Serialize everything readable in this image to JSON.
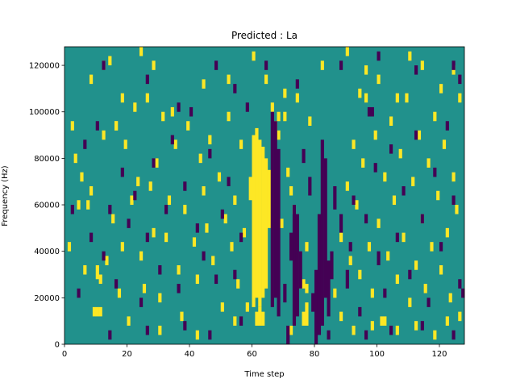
{
  "chart_data": {
    "type": "heatmap",
    "title": "Predicted : La",
    "xlabel": "Time step",
    "ylabel": "Frequency (Hz)",
    "xlim": [
      0,
      128
    ],
    "ylim": [
      0,
      128000
    ],
    "x_ticks": [
      0,
      20,
      40,
      60,
      80,
      100,
      120
    ],
    "y_ticks": [
      0,
      20000,
      40000,
      60000,
      80000,
      100000,
      120000
    ],
    "x_tick_labels": [
      "0",
      "20",
      "40",
      "60",
      "80",
      "100",
      "120"
    ],
    "y_tick_labels": [
      "0",
      "20000",
      "40000",
      "60000",
      "80000",
      "100000",
      "120000"
    ],
    "colormap": "viridis",
    "value_levels": [
      -1,
      0,
      1
    ],
    "colors": {
      "low": "#440154",
      "mid": "#21918c",
      "high": "#fde725"
    },
    "background_value": 0,
    "freq_bin_hz": 1000,
    "cells": {
      "high": [
        [
          61,
          8000,
          14000
        ],
        [
          62,
          8000,
          16000
        ],
        [
          63,
          8000,
          14000
        ],
        [
          60,
          16000,
          90000
        ],
        [
          61,
          20000,
          93000
        ],
        [
          62,
          16000,
          88000
        ],
        [
          63,
          20000,
          85000
        ],
        [
          64,
          24000,
          80000
        ],
        [
          65,
          50000,
          75000
        ],
        [
          59,
          62000,
          72000
        ],
        [
          66,
          60000,
          66000
        ],
        [
          76,
          8000,
          14000
        ],
        [
          77,
          8000,
          18000
        ],
        [
          75,
          24000,
          26000
        ],
        [
          76,
          24000,
          28000
        ],
        [
          77,
          22000,
          26000
        ],
        [
          77,
          40000,
          44000
        ],
        [
          9,
          12000,
          16000
        ],
        [
          10,
          12000,
          16000
        ],
        [
          11,
          12000,
          16000
        ],
        [
          1,
          40000,
          44000
        ],
        [
          2,
          92000,
          96000
        ],
        [
          3,
          78000,
          82000
        ],
        [
          4,
          58000,
          62000
        ],
        [
          5,
          70000,
          74000
        ],
        [
          6,
          30000,
          34000
        ],
        [
          7,
          58000,
          62000
        ],
        [
          8,
          64000,
          68000
        ],
        [
          10,
          28000,
          34000
        ],
        [
          11,
          26000,
          30000
        ],
        [
          12,
          88000,
          92000
        ],
        [
          13,
          34000,
          38000
        ],
        [
          15,
          52000,
          56000
        ],
        [
          16,
          92000,
          96000
        ],
        [
          17,
          20000,
          24000
        ],
        [
          18,
          40000,
          44000
        ],
        [
          19,
          84000,
          88000
        ],
        [
          21,
          60000,
          64000
        ],
        [
          22,
          100000,
          104000
        ],
        [
          23,
          68000,
          72000
        ],
        [
          24,
          36000,
          40000
        ],
        [
          25,
          22000,
          26000
        ],
        [
          26,
          104000,
          108000
        ],
        [
          27,
          66000,
          70000
        ],
        [
          28,
          46000,
          50000
        ],
        [
          29,
          76000,
          80000
        ],
        [
          30,
          18000,
          22000
        ],
        [
          31,
          96000,
          100000
        ],
        [
          32,
          44000,
          48000
        ],
        [
          33,
          60000,
          64000
        ],
        [
          35,
          84000,
          88000
        ],
        [
          36,
          30000,
          34000
        ],
        [
          37,
          10000,
          14000
        ],
        [
          38,
          56000,
          60000
        ],
        [
          39,
          92000,
          96000
        ],
        [
          41,
          42000,
          46000
        ],
        [
          42,
          26000,
          30000
        ],
        [
          43,
          78000,
          82000
        ],
        [
          44,
          64000,
          68000
        ],
        [
          45,
          48000,
          52000
        ],
        [
          46,
          86000,
          90000
        ],
        [
          47,
          34000,
          38000
        ],
        [
          49,
          70000,
          74000
        ],
        [
          50,
          14000,
          18000
        ],
        [
          51,
          52000,
          56000
        ],
        [
          52,
          96000,
          100000
        ],
        [
          53,
          40000,
          44000
        ],
        [
          54,
          60000,
          64000
        ],
        [
          55,
          24000,
          28000
        ],
        [
          56,
          84000,
          88000
        ],
        [
          57,
          46000,
          50000
        ],
        [
          58,
          14000,
          18000
        ],
        [
          66,
          100000,
          104000
        ],
        [
          67,
          92000,
          96000
        ],
        [
          68,
          88000,
          92000
        ],
        [
          69,
          50000,
          54000
        ],
        [
          70,
          96000,
          100000
        ],
        [
          71,
          72000,
          76000
        ],
        [
          72,
          64000,
          68000
        ],
        [
          73,
          56000,
          60000
        ],
        [
          74,
          104000,
          108000
        ],
        [
          78,
          94000,
          98000
        ],
        [
          86,
          20000,
          24000
        ],
        [
          88,
          44000,
          48000
        ],
        [
          90,
          66000,
          70000
        ],
        [
          91,
          34000,
          38000
        ],
        [
          92,
          84000,
          88000
        ],
        [
          93,
          58000,
          62000
        ],
        [
          94,
          28000,
          32000
        ],
        [
          95,
          76000,
          80000
        ],
        [
          96,
          104000,
          108000
        ],
        [
          97,
          40000,
          44000
        ],
        [
          98,
          20000,
          24000
        ],
        [
          99,
          88000,
          92000
        ],
        [
          100,
          50000,
          54000
        ],
        [
          101,
          8000,
          12000
        ],
        [
          102,
          70000,
          74000
        ],
        [
          103,
          36000,
          40000
        ],
        [
          104,
          94000,
          98000
        ],
        [
          105,
          60000,
          64000
        ],
        [
          106,
          26000,
          30000
        ],
        [
          107,
          80000,
          84000
        ],
        [
          108,
          44000,
          48000
        ],
        [
          109,
          104000,
          108000
        ],
        [
          110,
          16000,
          20000
        ],
        [
          111,
          68000,
          72000
        ],
        [
          112,
          32000,
          36000
        ],
        [
          113,
          88000,
          92000
        ],
        [
          114,
          52000,
          56000
        ],
        [
          115,
          22000,
          26000
        ],
        [
          116,
          76000,
          80000
        ],
        [
          117,
          40000,
          44000
        ],
        [
          118,
          96000,
          100000
        ],
        [
          119,
          62000,
          66000
        ],
        [
          120,
          30000,
          34000
        ],
        [
          121,
          84000,
          88000
        ],
        [
          122,
          46000,
          50000
        ],
        [
          123,
          18000,
          22000
        ],
        [
          124,
          70000,
          74000
        ],
        [
          125,
          56000,
          60000
        ],
        [
          126,
          10000,
          14000
        ],
        [
          8,
          112000,
          116000
        ],
        [
          12,
          118000,
          122000
        ],
        [
          14,
          120000,
          124000
        ],
        [
          16,
          92000,
          96000
        ],
        [
          18,
          104000,
          108000
        ],
        [
          24,
          124000,
          128000
        ],
        [
          28,
          118000,
          122000
        ],
        [
          34,
          98000,
          102000
        ],
        [
          44,
          110000,
          114000
        ],
        [
          52,
          112000,
          116000
        ],
        [
          60,
          122000,
          126000
        ],
        [
          64,
          112000,
          116000
        ],
        [
          68,
          96000,
          100000
        ],
        [
          70,
          106000,
          110000
        ],
        [
          82,
          118000,
          122000
        ],
        [
          90,
          124000,
          128000
        ],
        [
          94,
          106000,
          110000
        ],
        [
          96,
          116000,
          120000
        ],
        [
          100,
          112000,
          116000
        ],
        [
          106,
          104000,
          108000
        ],
        [
          110,
          122000,
          126000
        ],
        [
          114,
          118000,
          122000
        ],
        [
          120,
          108000,
          112000
        ],
        [
          124,
          116000,
          120000
        ],
        [
          126,
          104000,
          108000
        ],
        [
          20,
          8000,
          12000
        ],
        [
          30,
          4000,
          8000
        ],
        [
          42,
          2000,
          6000
        ],
        [
          54,
          8000,
          12000
        ],
        [
          72,
          4000,
          8000
        ],
        [
          88,
          10000,
          14000
        ],
        [
          92,
          4000,
          8000
        ],
        [
          98,
          6000,
          10000
        ],
        [
          102,
          8000,
          12000
        ],
        [
          106,
          4000,
          8000
        ],
        [
          112,
          6000,
          10000
        ],
        [
          118,
          2000,
          6000
        ],
        [
          122,
          8000,
          12000
        ]
      ],
      "low": [
        [
          66,
          16000,
          100000
        ],
        [
          67,
          20000,
          96000
        ],
        [
          68,
          12000,
          84000
        ],
        [
          73,
          8000,
          60000
        ],
        [
          74,
          12000,
          56000
        ],
        [
          75,
          24000,
          40000
        ],
        [
          79,
          14000,
          22000
        ],
        [
          80,
          0,
          32000
        ],
        [
          81,
          4000,
          56000
        ],
        [
          82,
          8000,
          88000
        ],
        [
          83,
          20000,
          80000
        ],
        [
          84,
          12000,
          36000
        ],
        [
          85,
          28000,
          40000
        ],
        [
          71,
          0,
          8000
        ],
        [
          70,
          18000,
          26000
        ],
        [
          72,
          36000,
          48000
        ],
        [
          78,
          64000,
          72000
        ],
        [
          76,
          78000,
          84000
        ],
        [
          86,
          58000,
          68000
        ],
        [
          88,
          48000,
          56000
        ],
        [
          90,
          24000,
          32000
        ],
        [
          91,
          40000,
          44000
        ],
        [
          92,
          60000,
          64000
        ],
        [
          94,
          12000,
          16000
        ],
        [
          96,
          52000,
          56000
        ],
        [
          97,
          98000,
          102000
        ],
        [
          98,
          98000,
          102000
        ],
        [
          99,
          74000,
          78000
        ],
        [
          100,
          34000,
          40000
        ],
        [
          102,
          20000,
          24000
        ],
        [
          104,
          82000,
          86000
        ],
        [
          106,
          44000,
          48000
        ],
        [
          108,
          64000,
          68000
        ],
        [
          110,
          28000,
          32000
        ],
        [
          112,
          88000,
          92000
        ],
        [
          114,
          52000,
          56000
        ],
        [
          116,
          16000,
          20000
        ],
        [
          118,
          72000,
          76000
        ],
        [
          120,
          40000,
          44000
        ],
        [
          122,
          92000,
          96000
        ],
        [
          124,
          60000,
          64000
        ],
        [
          126,
          24000,
          28000
        ],
        [
          127,
          20000,
          24000
        ],
        [
          2,
          56000,
          60000
        ],
        [
          4,
          20000,
          24000
        ],
        [
          6,
          84000,
          88000
        ],
        [
          8,
          44000,
          48000
        ],
        [
          10,
          92000,
          96000
        ],
        [
          12,
          36000,
          40000
        ],
        [
          14,
          56000,
          60000
        ],
        [
          16,
          24000,
          28000
        ],
        [
          18,
          72000,
          76000
        ],
        [
          20,
          50000,
          54000
        ],
        [
          22,
          62000,
          66000
        ],
        [
          24,
          16000,
          20000
        ],
        [
          26,
          44000,
          48000
        ],
        [
          28,
          76000,
          80000
        ],
        [
          30,
          30000,
          34000
        ],
        [
          32,
          56000,
          60000
        ],
        [
          34,
          86000,
          90000
        ],
        [
          36,
          22000,
          26000
        ],
        [
          38,
          66000,
          70000
        ],
        [
          40,
          98000,
          102000
        ],
        [
          42,
          48000,
          52000
        ],
        [
          44,
          36000,
          40000
        ],
        [
          46,
          80000,
          84000
        ],
        [
          48,
          26000,
          30000
        ],
        [
          50,
          54000,
          58000
        ],
        [
          52,
          68000,
          72000
        ],
        [
          54,
          28000,
          32000
        ],
        [
          56,
          44000,
          48000
        ],
        [
          58,
          100000,
          104000
        ],
        [
          12,
          118000,
          122000
        ],
        [
          26,
          112000,
          116000
        ],
        [
          36,
          100000,
          104000
        ],
        [
          48,
          118000,
          122000
        ],
        [
          54,
          108000,
          112000
        ],
        [
          64,
          118000,
          122000
        ],
        [
          74,
          110000,
          114000
        ],
        [
          88,
          118000,
          122000
        ],
        [
          100,
          122000,
          126000
        ],
        [
          112,
          116000,
          120000
        ],
        [
          124,
          118000,
          122000
        ],
        [
          126,
          112000,
          116000
        ],
        [
          14,
          2000,
          6000
        ],
        [
          26,
          4000,
          8000
        ],
        [
          38,
          6000,
          10000
        ],
        [
          46,
          2000,
          6000
        ],
        [
          56,
          8000,
          12000
        ],
        [
          84,
          2000,
          6000
        ],
        [
          96,
          2000,
          6000
        ],
        [
          104,
          4000,
          8000
        ],
        [
          114,
          6000,
          10000
        ],
        [
          124,
          2000,
          6000
        ]
      ]
    }
  }
}
